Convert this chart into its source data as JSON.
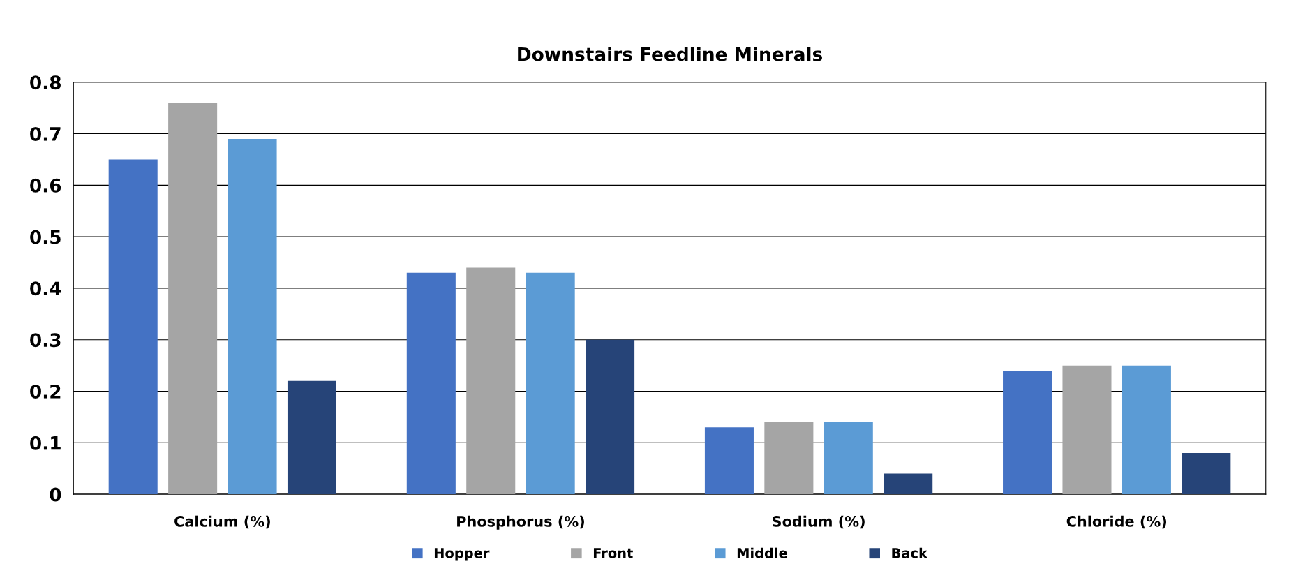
{
  "chart_data": {
    "type": "bar",
    "title": "Downstairs Feedline Minerals",
    "categories": [
      "Calcium (%)",
      "Phosphorus (%)",
      "Sodium (%)",
      "Chloride (%)"
    ],
    "series": [
      {
        "name": "Hopper",
        "color": "#4472c4",
        "values": [
          0.65,
          0.43,
          0.13,
          0.24
        ]
      },
      {
        "name": "Front",
        "color": "#a5a5a5",
        "values": [
          0.76,
          0.44,
          0.14,
          0.25
        ]
      },
      {
        "name": "Middle",
        "color": "#5b9bd5",
        "values": [
          0.69,
          0.43,
          0.14,
          0.25
        ]
      },
      {
        "name": "Back",
        "color": "#264478",
        "values": [
          0.22,
          0.3,
          0.04,
          0.08
        ]
      }
    ],
    "ylim": [
      0,
      0.8
    ],
    "yticks": [
      {
        "value": 0,
        "label": "0"
      },
      0.1,
      0.2,
      0.3,
      0.4,
      0.5,
      0.6,
      0.7,
      0.8
    ],
    "grid": "y",
    "legend": "bottom"
  }
}
